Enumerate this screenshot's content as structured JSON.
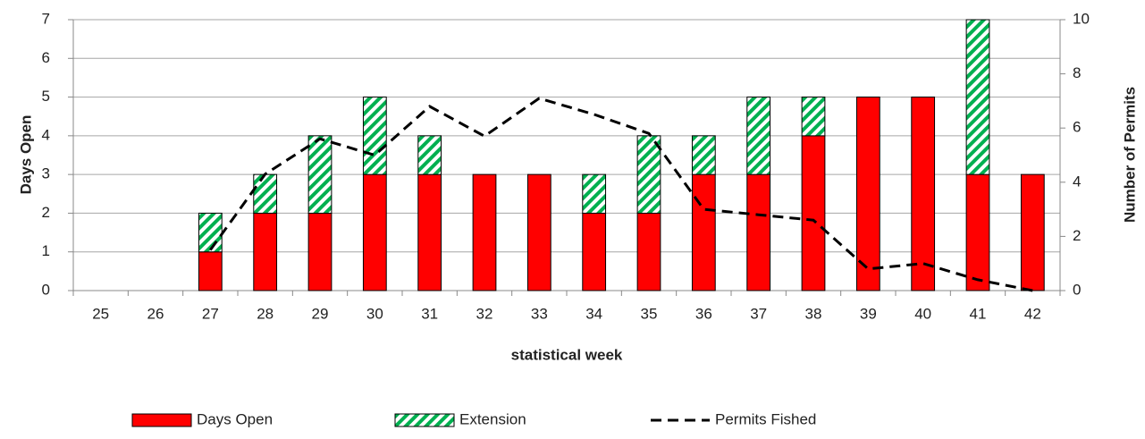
{
  "chart_data": {
    "type": "bar",
    "x_label": "statistical week",
    "y_label": "Days Open",
    "y2_label": "Number of Permits",
    "categories": [
      "25",
      "26",
      "27",
      "28",
      "29",
      "30",
      "31",
      "32",
      "33",
      "34",
      "35",
      "36",
      "37",
      "38",
      "39",
      "40",
      "41",
      "42"
    ],
    "stacked": true,
    "series": [
      {
        "name": "Days Open",
        "type": "bar",
        "color": "#ff0000",
        "values": [
          null,
          null,
          1,
          2,
          2,
          3,
          3,
          3,
          3,
          2,
          2,
          3,
          3,
          4,
          5,
          5,
          3,
          3
        ]
      },
      {
        "name": "Extension",
        "type": "bar",
        "color": "#00b050",
        "hatch": true,
        "values": [
          null,
          null,
          1,
          1,
          2,
          2,
          1,
          0,
          0,
          1,
          2,
          1,
          2,
          1,
          0,
          0,
          4,
          0
        ]
      },
      {
        "name": "Permits Fished",
        "type": "line",
        "axis": "y2",
        "color": "#000000",
        "dashed": true,
        "values": [
          null,
          null,
          1.5,
          4.3,
          5.6,
          5.0,
          6.8,
          5.7,
          7.1,
          6.5,
          5.8,
          3.0,
          2.8,
          2.6,
          0.8,
          1.0,
          0.4,
          0
        ]
      }
    ],
    "ylim": [
      0,
      7
    ],
    "yticks": [
      0,
      1,
      2,
      3,
      4,
      5,
      6,
      7
    ],
    "y2lim": [
      0,
      10
    ],
    "y2ticks": [
      0,
      2,
      4,
      6,
      8,
      10
    ],
    "grid": true,
    "legend": "bottom"
  }
}
